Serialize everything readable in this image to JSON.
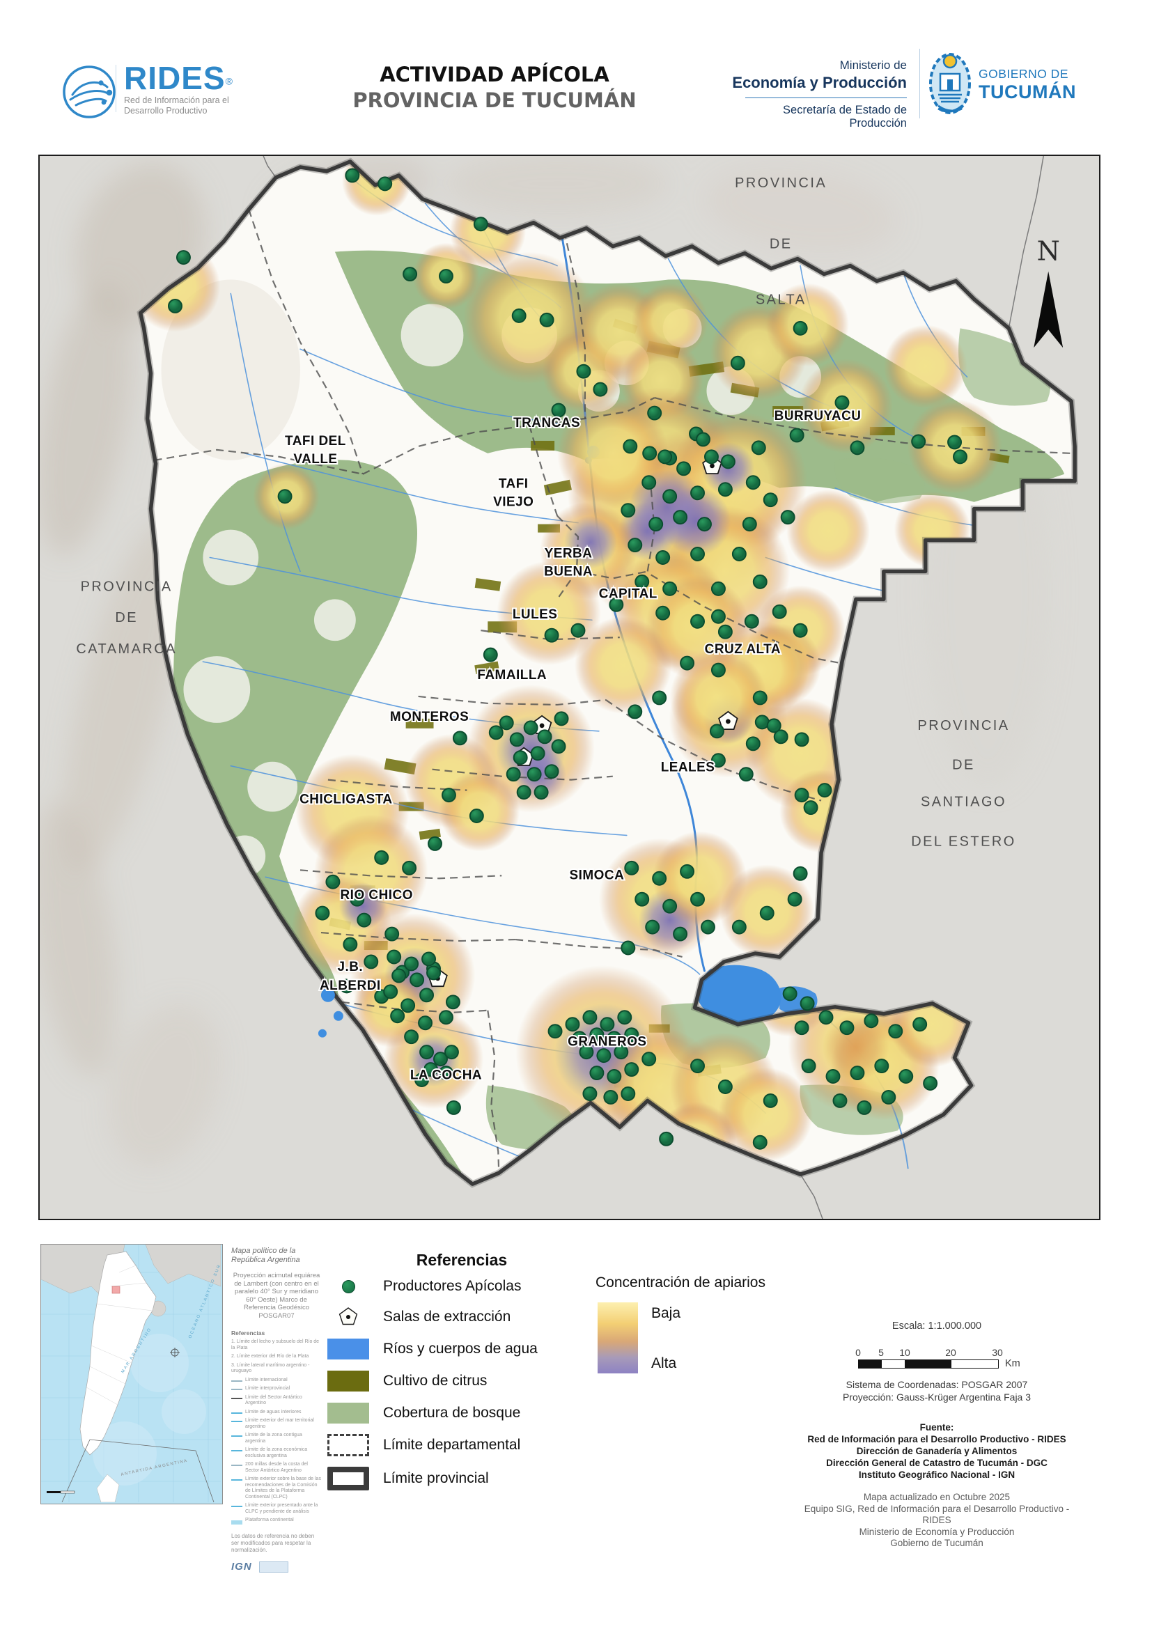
{
  "header": {
    "brand": "RIDES",
    "brand_reg": "®",
    "brand_tagline1": "Red de Información para el",
    "brand_tagline2": "Desarrollo Productivo",
    "title1": "ACTIVIDAD APÍCOLA",
    "title2": "PROVINCIA DE TUCUMÁN",
    "ministry_line1": "Ministerio de",
    "ministry_line2": "Economía y Producción",
    "ministry_line3": "Secretaría de Estado de Producción",
    "gov_line1": "GOBIERNO DE",
    "gov_line2": "TUCUMÁN"
  },
  "map": {
    "north": "N",
    "salta": [
      "PROVINCIA",
      "DE",
      "SALTA"
    ],
    "catamarca": [
      "PROVINCIA",
      "DE",
      "CATAMARCA"
    ],
    "santiago": [
      "PROVINCIA",
      "DE",
      "SANTIAGO",
      "DEL ESTERO"
    ],
    "departments": [
      {
        "name": "TRANCAS"
      },
      {
        "name": "BURRUYACU"
      },
      {
        "name": "TAFI DEL",
        "name2": "VALLE"
      },
      {
        "name": "TAFI",
        "name2": "VIEJO"
      },
      {
        "name": "YERBA",
        "name2": "BUENA"
      },
      {
        "name": "CAPITAL"
      },
      {
        "name": "LULES"
      },
      {
        "name": "CRUZ ALTA"
      },
      {
        "name": "FAMAILLA"
      },
      {
        "name": "MONTEROS"
      },
      {
        "name": "LEALES"
      },
      {
        "name": "CHICLIGASTA"
      },
      {
        "name": "RIO CHICO"
      },
      {
        "name": "SIMOCA"
      },
      {
        "name": "J.B.",
        "name2": "ALBERDI"
      },
      {
        "name": "GRANEROS"
      },
      {
        "name": "LA COCHA"
      }
    ],
    "heat": [
      [
        250,
        410,
        65,
        "y"
      ],
      [
        540,
        258,
        50,
        "y"
      ],
      [
        700,
        330,
        55,
        "y"
      ],
      [
        760,
        455,
        95,
        "y"
      ],
      [
        640,
        395,
        48,
        "y"
      ],
      [
        838,
        532,
        60,
        "y"
      ],
      [
        890,
        475,
        70,
        "y"
      ],
      [
        950,
        545,
        60,
        "y"
      ],
      [
        962,
        460,
        55,
        "y"
      ],
      [
        1090,
        505,
        70,
        "y"
      ],
      [
        1160,
        465,
        60,
        "y"
      ],
      [
        1215,
        582,
        68,
        "y"
      ],
      [
        1330,
        525,
        60,
        "y"
      ],
      [
        1372,
        640,
        68,
        "y"
      ],
      [
        950,
        660,
        105,
        "y"
      ],
      [
        1000,
        740,
        125,
        "y"
      ],
      [
        1060,
        690,
        100,
        "y"
      ],
      [
        940,
        790,
        105,
        "y"
      ],
      [
        900,
        710,
        85,
        "y"
      ],
      [
        1040,
        820,
        95,
        "y"
      ],
      [
        962,
        875,
        85,
        "y"
      ],
      [
        880,
        650,
        80,
        "y"
      ],
      [
        958,
        728,
        55,
        "p"
      ],
      [
        1000,
        748,
        50,
        "p"
      ],
      [
        930,
        762,
        42,
        "p"
      ],
      [
        1046,
        672,
        38,
        "p"
      ],
      [
        845,
        790,
        70,
        "y"
      ],
      [
        848,
        778,
        38,
        "p"
      ],
      [
        788,
        880,
        75,
        "y"
      ],
      [
        895,
        955,
        70,
        "y"
      ],
      [
        1046,
        1032,
        85,
        "y"
      ],
      [
        1046,
        1032,
        36,
        "p"
      ],
      [
        1150,
        905,
        65,
        "y"
      ],
      [
        1120,
        955,
        60,
        "y"
      ],
      [
        1190,
        762,
        60,
        "y"
      ],
      [
        1340,
        760,
        55,
        "y"
      ],
      [
        1002,
        900,
        75,
        "y"
      ],
      [
        1090,
        962,
        72,
        "y"
      ],
      [
        1150,
        1082,
        80,
        "y"
      ],
      [
        1032,
        1002,
        70,
        "y"
      ],
      [
        1180,
        1165,
        60,
        "y"
      ],
      [
        762,
        1075,
        92,
        "y"
      ],
      [
        762,
        1078,
        50,
        "p"
      ],
      [
        775,
        1112,
        38,
        "p"
      ],
      [
        648,
        1122,
        68,
        "y"
      ],
      [
        688,
        1165,
        58,
        "y"
      ],
      [
        505,
        1165,
        82,
        "y"
      ],
      [
        532,
        1252,
        82,
        "y"
      ],
      [
        490,
        1330,
        72,
        "y"
      ],
      [
        520,
        1302,
        34,
        "p"
      ],
      [
        948,
        1292,
        88,
        "y"
      ],
      [
        962,
        1322,
        45,
        "p"
      ],
      [
        1005,
        1262,
        68,
        "y"
      ],
      [
        1102,
        1310,
        68,
        "y"
      ],
      [
        592,
        1402,
        90,
        "y"
      ],
      [
        595,
        1405,
        44,
        "p"
      ],
      [
        865,
        1512,
        125,
        "y"
      ],
      [
        868,
        1514,
        72,
        "p"
      ],
      [
        948,
        1562,
        85,
        "y"
      ],
      [
        1230,
        1502,
        98,
        "y"
      ],
      [
        1272,
        1532,
        78,
        "y"
      ],
      [
        1230,
        1505,
        48,
        "o"
      ],
      [
        1340,
        1472,
        62,
        "y"
      ],
      [
        622,
        1522,
        72,
        "y"
      ],
      [
        622,
        1524,
        38,
        "p"
      ],
      [
        560,
        1450,
        55,
        "y"
      ],
      [
        1040,
        1562,
        78,
        "y"
      ],
      [
        1100,
        1602,
        68,
        "y"
      ],
      [
        1000,
        1642,
        58,
        "y"
      ],
      [
        1135,
        1432,
        58,
        "y"
      ],
      [
        410,
        712,
        48,
        "y"
      ]
    ],
    "productores": [
      [
        505,
        250
      ],
      [
        552,
        262
      ],
      [
        588,
        392
      ],
      [
        690,
        320
      ],
      [
        745,
        452
      ],
      [
        785,
        458
      ],
      [
        838,
        532
      ],
      [
        862,
        558
      ],
      [
        802,
        588
      ],
      [
        262,
        368
      ],
      [
        250,
        438
      ],
      [
        408,
        712
      ],
      [
        640,
        395
      ],
      [
        940,
        592
      ],
      [
        1000,
        622
      ],
      [
        962,
        657
      ],
      [
        933,
        650
      ],
      [
        1090,
        642
      ],
      [
        1145,
        624
      ],
      [
        1210,
        577
      ],
      [
        1232,
        642
      ],
      [
        1320,
        633
      ],
      [
        1372,
        634
      ],
      [
        1380,
        655
      ],
      [
        1060,
        520
      ],
      [
        1150,
        470
      ],
      [
        905,
        640
      ],
      [
        955,
        655
      ],
      [
        982,
        672
      ],
      [
        1022,
        655
      ],
      [
        932,
        692
      ],
      [
        962,
        712
      ],
      [
        1002,
        707
      ],
      [
        1042,
        702
      ],
      [
        1082,
        692
      ],
      [
        1107,
        717
      ],
      [
        902,
        732
      ],
      [
        942,
        752
      ],
      [
        977,
        742
      ],
      [
        1012,
        752
      ],
      [
        1077,
        752
      ],
      [
        1132,
        742
      ],
      [
        912,
        782
      ],
      [
        952,
        800
      ],
      [
        1002,
        795
      ],
      [
        1062,
        795
      ],
      [
        922,
        835
      ],
      [
        962,
        845
      ],
      [
        1032,
        845
      ],
      [
        1092,
        835
      ],
      [
        952,
        880
      ],
      [
        1032,
        885
      ],
      [
        885,
        868
      ],
      [
        1010,
        630
      ],
      [
        1046,
        662
      ],
      [
        1150,
        905
      ],
      [
        1120,
        878
      ],
      [
        1095,
        1037
      ],
      [
        1122,
        1058
      ],
      [
        1082,
        1068
      ],
      [
        912,
        1022
      ],
      [
        1030,
        1050
      ],
      [
        792,
        912
      ],
      [
        830,
        905
      ],
      [
        704,
        940
      ],
      [
        742,
        1062
      ],
      [
        762,
        1045
      ],
      [
        782,
        1058
      ],
      [
        747,
        1088
      ],
      [
        772,
        1082
      ],
      [
        802,
        1072
      ],
      [
        737,
        1112
      ],
      [
        767,
        1112
      ],
      [
        792,
        1108
      ],
      [
        752,
        1138
      ],
      [
        777,
        1138
      ],
      [
        727,
        1038
      ],
      [
        806,
        1032
      ],
      [
        712,
        1052
      ],
      [
        660,
        1060
      ],
      [
        644,
        1142
      ],
      [
        684,
        1172
      ],
      [
        624,
        1212
      ],
      [
        1002,
        892
      ],
      [
        1042,
        907
      ],
      [
        1080,
        892
      ],
      [
        987,
        952
      ],
      [
        1032,
        962
      ],
      [
        947,
        1002
      ],
      [
        1092,
        1002
      ],
      [
        1112,
        1042
      ],
      [
        1152,
        1062
      ],
      [
        1032,
        1092
      ],
      [
        1072,
        1112
      ],
      [
        1152,
        1142
      ],
      [
        1165,
        1160
      ],
      [
        1185,
        1135
      ],
      [
        547,
        1232
      ],
      [
        587,
        1247
      ],
      [
        477,
        1267
      ],
      [
        512,
        1292
      ],
      [
        462,
        1312
      ],
      [
        522,
        1322
      ],
      [
        562,
        1342
      ],
      [
        502,
        1357
      ],
      [
        532,
        1382
      ],
      [
        577,
        1397
      ],
      [
        622,
        1392
      ],
      [
        497,
        1417
      ],
      [
        547,
        1432
      ],
      [
        907,
        1247
      ],
      [
        947,
        1262
      ],
      [
        987,
        1252
      ],
      [
        922,
        1292
      ],
      [
        962,
        1302
      ],
      [
        1002,
        1292
      ],
      [
        937,
        1332
      ],
      [
        977,
        1342
      ],
      [
        1017,
        1332
      ],
      [
        902,
        1362
      ],
      [
        1062,
        1332
      ],
      [
        1102,
        1312
      ],
      [
        1142,
        1292
      ],
      [
        1150,
        1255
      ],
      [
        565,
        1375
      ],
      [
        590,
        1385
      ],
      [
        615,
        1378
      ],
      [
        572,
        1402
      ],
      [
        598,
        1408
      ],
      [
        622,
        1398
      ],
      [
        560,
        1425
      ],
      [
        612,
        1430
      ],
      [
        585,
        1445
      ],
      [
        650,
        1440
      ],
      [
        570,
        1460
      ],
      [
        610,
        1470
      ],
      [
        640,
        1462
      ],
      [
        590,
        1490
      ],
      [
        822,
        1472
      ],
      [
        847,
        1462
      ],
      [
        872,
        1472
      ],
      [
        897,
        1462
      ],
      [
        832,
        1492
      ],
      [
        857,
        1487
      ],
      [
        882,
        1492
      ],
      [
        907,
        1487
      ],
      [
        842,
        1512
      ],
      [
        867,
        1517
      ],
      [
        892,
        1512
      ],
      [
        857,
        1542
      ],
      [
        882,
        1547
      ],
      [
        907,
        1537
      ],
      [
        932,
        1522
      ],
      [
        847,
        1572
      ],
      [
        877,
        1577
      ],
      [
        902,
        1572
      ],
      [
        797,
        1482
      ],
      [
        1152,
        1477
      ],
      [
        1187,
        1462
      ],
      [
        1217,
        1477
      ],
      [
        1252,
        1467
      ],
      [
        1287,
        1482
      ],
      [
        1322,
        1472
      ],
      [
        1162,
        1532
      ],
      [
        1197,
        1547
      ],
      [
        1232,
        1542
      ],
      [
        1267,
        1532
      ],
      [
        1302,
        1547
      ],
      [
        1207,
        1582
      ],
      [
        1242,
        1592
      ],
      [
        1277,
        1577
      ],
      [
        1337,
        1557
      ],
      [
        1002,
        1532
      ],
      [
        1042,
        1562
      ],
      [
        1107,
        1582
      ],
      [
        957,
        1637
      ],
      [
        1092,
        1642
      ],
      [
        1135,
        1428
      ],
      [
        1160,
        1442
      ],
      [
        612,
        1512
      ],
      [
        632,
        1522
      ],
      [
        648,
        1512
      ],
      [
        618,
        1537
      ],
      [
        640,
        1542
      ],
      [
        605,
        1552
      ],
      [
        651,
        1592
      ]
    ],
    "salas": [
      [
        1023,
        668
      ],
      [
        778,
        1042
      ],
      [
        752,
        1088
      ],
      [
        1046,
        1036
      ],
      [
        628,
        1406
      ]
    ]
  },
  "legend": {
    "title": "Referencias",
    "items": [
      "Productores Apícolas",
      "Salas de extracción",
      "Ríos y cuerpos de agua",
      "Cultivo de citrus",
      "Cobertura de bosque",
      "Límite departamental",
      "Límite provincial"
    ],
    "concentration_title": "Concentración de apiarios",
    "concentration_low": "Baja",
    "concentration_high": "Alta"
  },
  "scalebox": {
    "escala": "Escala: 1:1.000.000",
    "ticks": [
      "0",
      "5",
      "10",
      "20",
      "30"
    ],
    "unit": "Km",
    "crs": "Sistema de Coordenadas: POSGAR 2007",
    "proj": "Proyección: Gauss-Krüger Argentina Faja 3"
  },
  "source": {
    "title": "Fuente:",
    "lines": [
      "Red de Información para el Desarrollo Productivo - RIDES",
      "Dirección de Ganadería y Alimentos",
      "Dirección General de Catastro de Tucumán - DGC",
      "Instituto Geográfico Nacional - IGN"
    ],
    "credits": [
      "Mapa actualizado en Octubre 2025",
      "Equipo SIG, Red de Información para el Desarrollo Productivo - RIDES",
      "Ministerio de Economía y Producción",
      "Gobierno de Tucumán"
    ]
  },
  "inset": {
    "title": "Mapa político de la República Argentina",
    "projection_note": "Proyección acimutal equiárea de Lambert (con centro en el paralelo 40° Sur y meridiano 60° Oeste) Marco de Referencia Geodésico POSGAR07",
    "refs_title": "Referencias",
    "refs": [
      "1. Límite del lecho y subsuelo del Río de la Plata",
      "2. Límite exterior del Río de la Plata",
      "3. Límite lateral marítimo argentino - uruguayo",
      "Límite internacional",
      "Límite interprovincial",
      "Límite del Sector Antártico Argentino",
      "Límite de aguas interiores",
      "Límite exterior del mar territorial argentino",
      "Límite de la zona contigua argentina",
      "Límite de la zona económica exclusiva argentina",
      "200 millas desde la costa del Sector Antártico Argentino",
      "Límite exterior sobre la base de las recomendaciones de la Comisión de Límites de la Plataforma Continental (CLPC)",
      "Límite exterior presentado ante la CLPC y pendiente de análisis",
      "Plataforma continental"
    ],
    "note": "Los datos de referencia no deben ser modificados para respetar la normalización.",
    "sea1": "MAR ARGENTINO",
    "sea2": "OCEANO ATLANTICO SUR",
    "sea3": "ANTARTIDA ARGENTINA",
    "ign": "IGN"
  },
  "colors": {
    "accent_blue": "#2f88c9",
    "gov_blue": "#1f78bc",
    "navy": "#17365d",
    "water": "#4a90e8",
    "citrus": "#6b6c10",
    "forest": "#a3bd8f",
    "dot_green": "#1e7a4b",
    "heat_low": "#f2de7e",
    "heat_high": "#8d82c3"
  }
}
